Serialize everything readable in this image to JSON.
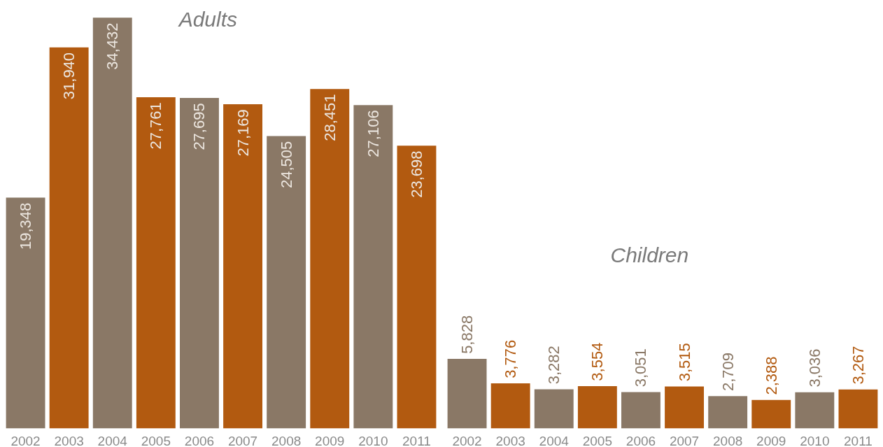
{
  "chart_data": [
    {
      "type": "bar",
      "title": "Adults",
      "categories": [
        "2002",
        "2003",
        "2004",
        "2005",
        "2006",
        "2007",
        "2008",
        "2009",
        "2010",
        "2011"
      ],
      "values": [
        19348,
        31940,
        34432,
        27761,
        27695,
        27169,
        24505,
        28451,
        27106,
        23698
      ],
      "value_labels": [
        "19,348",
        "31,940",
        "34,432",
        "27,761",
        "27,695",
        "27,169",
        "24,505",
        "28,451",
        "27,106",
        "23,698"
      ],
      "colors": [
        "#8a7866",
        "#b25a10",
        "#8a7866",
        "#b25a10",
        "#8a7866",
        "#b25a10",
        "#8a7866",
        "#b25a10",
        "#8a7866",
        "#b25a10"
      ],
      "tick_labels": "x"
    },
    {
      "type": "bar",
      "title": "Children",
      "categories": [
        "2002",
        "2003",
        "2004",
        "2005",
        "2006",
        "2007",
        "2008",
        "2009",
        "2010",
        "2011"
      ],
      "values": [
        5828,
        3776,
        3282,
        3554,
        3051,
        3515,
        2709,
        2388,
        3036,
        3267
      ],
      "value_labels": [
        "5,828",
        "3,776",
        "3,282",
        "3,554",
        "3,051",
        "3,515",
        "2,709",
        "2,388",
        "3,036",
        "3,267"
      ],
      "colors": [
        "#8a7866",
        "#b25a10",
        "#8a7866",
        "#b25a10",
        "#8a7866",
        "#b25a10",
        "#8a7866",
        "#b25a10",
        "#8a7866",
        "#b25a10"
      ],
      "tick_labels": "x"
    }
  ]
}
